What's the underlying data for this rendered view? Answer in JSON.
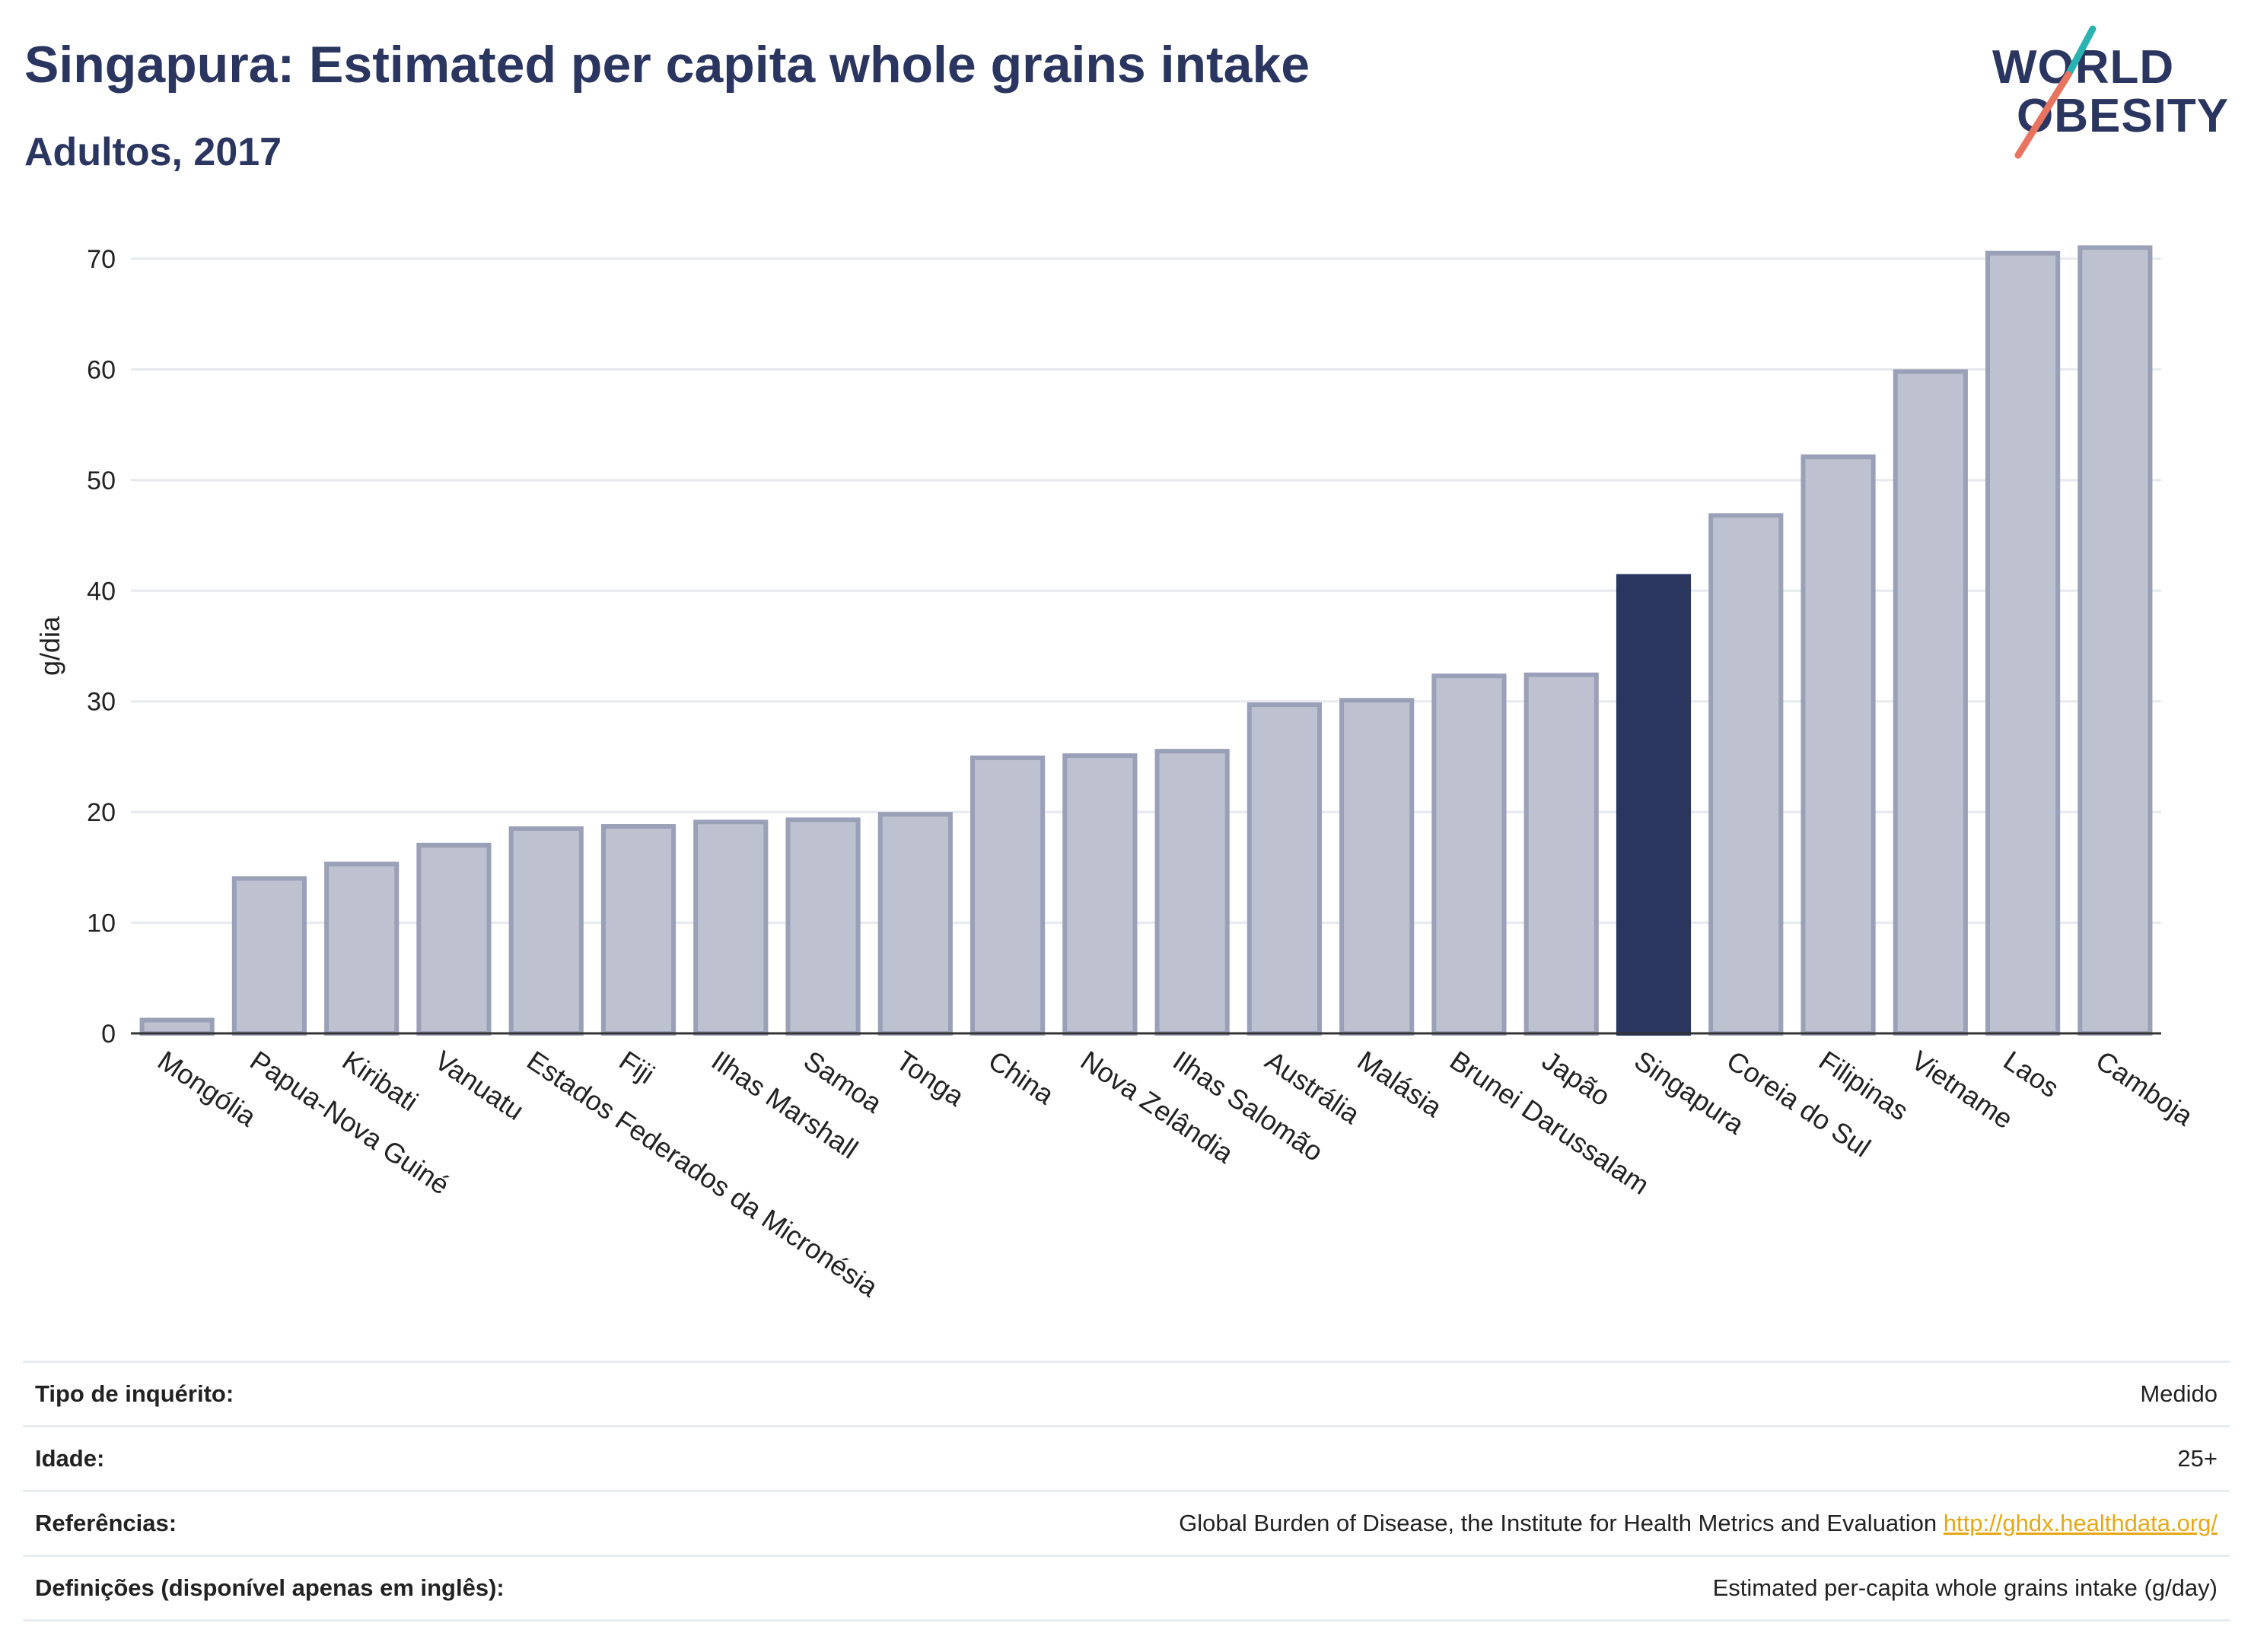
{
  "header": {
    "title": "Singapura: Estimated per capita whole grains intake",
    "subtitle": "Adultos, 2017"
  },
  "logo": {
    "line1": "WORLD",
    "line2": "OBESITY"
  },
  "colors": {
    "bar": "#bec2d0",
    "bar_border": "#9aa0b7",
    "highlight": "#2a3560",
    "grid": "#e6e9ee",
    "logo_teal": "#2bb3b1",
    "logo_coral": "#e8735f",
    "link": "#e6a817"
  },
  "chart_data": {
    "type": "bar",
    "ylabel": "g/dia",
    "xlabel": "",
    "ylim": [
      0,
      72
    ],
    "yticks": [
      0,
      10,
      20,
      30,
      40,
      50,
      60,
      70
    ],
    "grid": true,
    "highlight": "Singapura",
    "categories": [
      "Mongólia",
      "Papua-Nova Guiné",
      "Kiribati",
      "Vanuatu",
      "Estados Federados da Micronésia",
      "Fiji",
      "Ilhas Marshall",
      "Samoa",
      "Tonga",
      "China",
      "Nova Zelândia",
      "Ilhas Salomão",
      "Austrália",
      "Malásia",
      "Brunei Darussalam",
      "Japão",
      "Singapura",
      "Coreia do Sul",
      "Filipinas",
      "Vietname",
      "Laos",
      "Camboja"
    ],
    "values": [
      1.2,
      14.0,
      15.3,
      17.0,
      18.5,
      18.7,
      19.1,
      19.3,
      19.8,
      24.9,
      25.1,
      25.5,
      29.7,
      30.1,
      32.3,
      32.4,
      41.3,
      46.8,
      52.1,
      59.8,
      70.5,
      71.0
    ]
  },
  "info": [
    {
      "label": "Tipo de inquérito:",
      "value": "Medido"
    },
    {
      "label": "Idade:",
      "value": "25+"
    },
    {
      "label": "Referências:",
      "value": "Global Burden of Disease, the Institute for Health Metrics and Evaluation",
      "link": "http://ghdx.healthdata.org/"
    },
    {
      "label": "Definições (disponível apenas em inglês):",
      "value": "Estimated per-capita whole grains intake (g/day)"
    }
  ]
}
